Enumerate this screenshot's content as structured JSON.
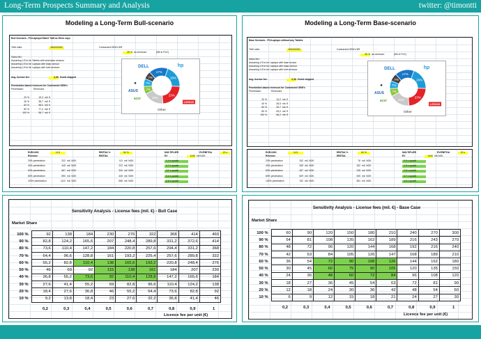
{
  "header": {
    "title": "Long-Term Prospects Summary and Analysis",
    "twitter": "twitter: @timontti"
  },
  "bull": {
    "panel_title": "Modeling a Long-Term Bull-scenario",
    "scenario": "Bull Scenario - PC/Laptops/Tablet TAM as Etelo says",
    "tam_label": "TAM units:",
    "tam_value": "460000000",
    "oem_label": "Contracted OEM's €/€",
    "oem_value": "35 %",
    "oem_note": "as minimum",
    "oem_rank": "(5th in PoC)",
    "sales_mix": "Sales Mix:",
    "mix_lines": [
      "Assuming 1/3 to be Tablets with sea/mass sensors",
      "Assuming 1/3 to be Laptops with basic sensor",
      "Assuming 1/3 to be Laptops with both sensors"
    ],
    "fee_label": "Avg. license fee:",
    "fee_value": "0,30",
    "fee_unit": "€/unit shipped",
    "pen_title": "Penetration based revenues for Contracted OEM's",
    "pen_headers": [
      "Penetration",
      "Revenues"
    ],
    "pen_rows": [
      [
        "20 %",
        "19,3",
        "mil. €"
      ],
      [
        "40 %",
        "38,7",
        "mil. €"
      ],
      [
        "60 %",
        "58,0",
        "mil. €"
      ],
      [
        "80 %",
        "77,4",
        "mil. €"
      ],
      [
        "100 %",
        "96,7",
        "mil. €"
      ]
    ],
    "eur_label": "EUR-NOK",
    "eur_value": "11,5",
    "ebitda_label": "EBITDA %",
    "ebitda_value": "50 %",
    "mult_label": "MULTIPLIER",
    "evebitda_label": "EV/EBITDA",
    "evebitda_value": "20 x",
    "rev_label": "Revenue",
    "ebitda_col": "EBITDA",
    "ev_col": "EV",
    "ev_value": "1440",
    "ev_unit": "mil NOK",
    "rev_rows": [
      [
        "20% penetration",
        "222",
        "mil. NOK",
        "111",
        "mil. NOK",
        "1,4 x upside"
      ],
      [
        "40% penetration",
        "445",
        "mil. NOK",
        "222",
        "mil. NOK",
        "2,7 x upside"
      ],
      [
        "60% penetration",
        "667",
        "mil. NOK",
        "334",
        "mil. NOK",
        "4,1 x upside"
      ],
      [
        "80% penetration",
        "890",
        "mil. NOK",
        "445",
        "mil. NOK",
        "5,4 x upside"
      ],
      [
        "100% penetration",
        "1112",
        "mil. NOK",
        "556",
        "mil. NOK",
        "6,8 x upside"
      ]
    ],
    "sens_title": "Sensitivity Analysis - License fees (mil. €) - Bull Case",
    "market_share": "Market Share",
    "row_labels": [
      "100 %",
      "90 %",
      "80 %",
      "70 %",
      "60 %",
      "50 %",
      "40 %",
      "30 %",
      "20 %",
      "10 %"
    ],
    "grid": [
      [
        "92",
        "138",
        "184",
        "230",
        "276",
        "322",
        "368",
        "414",
        "460"
      ],
      [
        "82,8",
        "124,2",
        "165,6",
        "207",
        "248,4",
        "289,8",
        "331,2",
        "372,6",
        "414"
      ],
      [
        "73,6",
        "110,4",
        "147,2",
        "184",
        "220,8",
        "257,6",
        "294,4",
        "331,2",
        "368"
      ],
      [
        "64,4",
        "96,6",
        "128,8",
        "161",
        "193,2",
        "225,4",
        "257,6",
        "289,8",
        "322"
      ],
      [
        "55,2",
        "82,8",
        "110,4",
        "138",
        "165,6",
        "193,2",
        "220,8",
        "248,4",
        "276"
      ],
      [
        "46",
        "69",
        "92",
        "115",
        "138",
        "161",
        "184",
        "207",
        "230"
      ],
      [
        "36,8",
        "55,2",
        "73,6",
        "92",
        "110,4",
        "128,8",
        "147,2",
        "165,6",
        "184"
      ],
      [
        "27,6",
        "41,4",
        "55,2",
        "69",
        "82,8",
        "96,6",
        "110,4",
        "124,2",
        "138"
      ],
      [
        "18,4",
        "27,6",
        "36,8",
        "46",
        "55,2",
        "64,4",
        "73,6",
        "82,8",
        "92"
      ],
      [
        "9,2",
        "13,8",
        "18,4",
        "23",
        "27,6",
        "32,2",
        "36,8",
        "41,4",
        "46"
      ]
    ],
    "col_labels": [
      "0,2",
      "0,3",
      "0,4",
      "0,5",
      "0,6",
      "0,7",
      "0,8",
      "0,9",
      "1"
    ],
    "fee_axis": "Licence fee per unit (€)"
  },
  "base": {
    "panel_title": "Modeling a Long-Term Base-scenario",
    "scenario": "Base Scenario - PC/Laptops without any Tablets",
    "tam_label": "TAM units:",
    "tam_value": "300000000",
    "oem_label": "Contracted OEM's €/€",
    "oem_value": "35 %",
    "oem_note": "as minimum",
    "oem_rank": "(5th in PoC)",
    "sales_mix": "Sales Mix:",
    "mix_lines": [
      "Assuming 1/3 to be Laptops with base sensor",
      "Assuming 1/3 to be Laptops with basic sensor",
      "Assuming 1/3 to be Laptops with both sensors"
    ],
    "fee_label": "Avg. license fee:",
    "fee_value": "0,30",
    "fee_unit": "€/unit shipped",
    "pen_title": "Penetration based revenues for Contracted OEM's",
    "pen_headers": [
      "Penetration",
      "Revenues"
    ],
    "pen_rows": [
      [
        "20 %",
        "13,2",
        "mil. €"
      ],
      [
        "40 %",
        "26,5",
        "mil. €"
      ],
      [
        "60 %",
        "39,7",
        "mil. €"
      ],
      [
        "80 %",
        "53,0",
        "mil. €"
      ],
      [
        "100 %",
        "66,2",
        "mil. €"
      ]
    ],
    "eur_label": "EUR-NOK",
    "eur_value": "11,5",
    "ebitda_label": "EBITDA %",
    "ebitda_value": "50 %",
    "mult_label": "MULTIPLIER",
    "evebitda_label": "EV/EBITDA",
    "evebitda_value": "20 x",
    "rev_label": "Revenue",
    "ebitda_col": "EBITDA",
    "ev_col": "EV",
    "ev_value": "1440",
    "ev_unit": "mil NOK",
    "rev_rows": [
      [
        "20% penetration",
        "152",
        "mil. NOK",
        "76",
        "mil. NOK",
        "0,9 x upside"
      ],
      [
        "40% penetration",
        "305",
        "mil. NOK",
        "152",
        "mil. NOK",
        "1,9 x upside"
      ],
      [
        "60% penetration",
        "457",
        "mil. NOK",
        "228",
        "mil. NOK",
        "2,8 x upside"
      ],
      [
        "80% penetration",
        "609",
        "mil. NOK",
        "305",
        "mil. NOK",
        "3,7 x upside"
      ],
      [
        "100% penetration",
        "762",
        "mil. NOK",
        "381",
        "mil. NOK",
        "4,6 x upside"
      ]
    ],
    "sens_title": "Sensitivity Analysis - License fees (mil. €) - Base Case",
    "market_share": "Market Share",
    "row_labels": [
      "100 %",
      "90 %",
      "80 %",
      "70 %",
      "60 %",
      "50 %",
      "40 %",
      "30 %",
      "20 %",
      "10 %"
    ],
    "grid": [
      [
        "60",
        "90",
        "120",
        "150",
        "180",
        "210",
        "240",
        "270",
        "300"
      ],
      [
        "54",
        "81",
        "108",
        "135",
        "162",
        "189",
        "216",
        "243",
        "270"
      ],
      [
        "48",
        "72",
        "96",
        "120",
        "144",
        "168",
        "192",
        "216",
        "240"
      ],
      [
        "42",
        "63",
        "84",
        "105",
        "126",
        "147",
        "168",
        "189",
        "210"
      ],
      [
        "36",
        "54",
        "72",
        "90",
        "108",
        "126",
        "144",
        "162",
        "180"
      ],
      [
        "30",
        "45",
        "60",
        "75",
        "90",
        "105",
        "120",
        "135",
        "150"
      ],
      [
        "24",
        "36",
        "48",
        "60",
        "72",
        "84",
        "96",
        "108",
        "120"
      ],
      [
        "18",
        "27",
        "36",
        "45",
        "54",
        "63",
        "72",
        "81",
        "90"
      ],
      [
        "12",
        "18",
        "24",
        "30",
        "36",
        "42",
        "48",
        "54",
        "60"
      ],
      [
        "6",
        "9",
        "12",
        "15",
        "18",
        "21",
        "24",
        "27",
        "30"
      ]
    ],
    "col_labels": [
      "0,2",
      "0,3",
      "0,4",
      "0,5",
      "0,6",
      "0,7",
      "0,8",
      "0,9",
      "1"
    ],
    "fee_axis": "Licence fee per unit (€)"
  },
  "pie": {
    "slices": [
      {
        "brand": "hp",
        "label": "20%",
        "value": 20,
        "color": "#1f9bd7"
      },
      {
        "brand": "lenovo",
        "label": "23%",
        "value": 23,
        "color": "#e42228"
      },
      {
        "brand": "other",
        "label": "18%",
        "value": 18,
        "color": "#c9c9c9"
      },
      {
        "brand": "acer",
        "label": "7%",
        "value": 7,
        "color": "#8cc63f"
      },
      {
        "brand": "asus",
        "label": "7%",
        "value": 7,
        "color": "#25a9e0"
      },
      {
        "brand": "apple",
        "label": "7%",
        "value": 7,
        "color": "#444444"
      },
      {
        "brand": "dell",
        "label": "17%",
        "value": 17,
        "color": "#1877c8"
      }
    ],
    "logo_hp": "hp",
    "logo_dell": "DELL",
    "logo_asus": "ASUS",
    "logo_acer": "acer",
    "logo_lenovo": "Lenovo",
    "other_label": "Other"
  },
  "colors": {
    "accent": "#17a3a1",
    "highlight": "#ffff2b",
    "green": "#7dd14f"
  }
}
